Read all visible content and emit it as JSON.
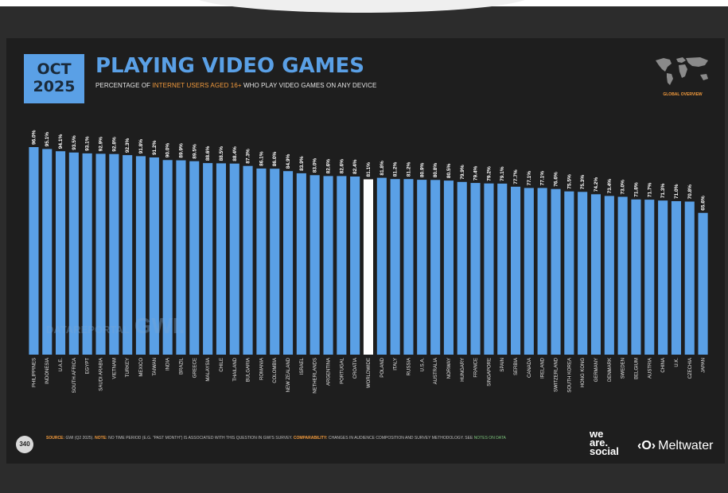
{
  "header": {
    "month": "OCT",
    "year": "2025",
    "title": "PLAYING VIDEO GAMES",
    "subtitle_pre": "PERCENTAGE OF ",
    "subtitle_highlight": "INTERNET USERS AGED 16+",
    "subtitle_post": " WHO PLAY VIDEO GAMES ON ANY DEVICE",
    "global_overview": "GLOBAL OVERVIEW"
  },
  "footer": {
    "page_number": "340",
    "source_label": "SOURCE:",
    "source_text": " GWI (Q2 2025). ",
    "note_label": "NOTE:",
    "note_text": " NO TIME PERIOD (E.G. \"PAST MONTH\") IS ASSOCIATED WITH THIS QUESTION IN GWI'S SURVEY. ",
    "comparability_label": "COMPARABILITY:",
    "comparability_text": " CHANGES IN AUDIENCE COMPOSITION AND SURVEY METHODOLOGY. SEE ",
    "notes_link": "NOTES ON DATA",
    "brand_line1": "we",
    "brand_line2": "are.",
    "brand_line3": "social",
    "partner_logo": "‹O›",
    "partner_name": "Meltwater"
  },
  "watermark": {
    "left": "DATAREPORTAL",
    "right": "GWI."
  },
  "colors": {
    "bar": "#5aa0e6",
    "highlight_bar": "#ffffff",
    "accent": "#f29a3c",
    "background": "#1e1e1e"
  },
  "chart_data": {
    "type": "bar",
    "title": "PLAYING VIDEO GAMES",
    "categories": [
      "PHILIPPINES",
      "INDONESIA",
      "U.A.E.",
      "SOUTH AFRICA",
      "EGYPT",
      "SAUDI ARABIA",
      "VIETNAM",
      "TURKEY",
      "MEXICO",
      "TAIWAN",
      "INDIA",
      "BRAZIL",
      "GREECE",
      "MALAYSIA",
      "CHILE",
      "THAILAND",
      "BULGARIA",
      "ROMANIA",
      "COLOMBIA",
      "NEW ZEALAND",
      "ISRAEL",
      "NETHERLANDS",
      "ARGENTINA",
      "PORTUGAL",
      "CROATIA",
      "WORLDWIDE",
      "POLAND",
      "ITALY",
      "RUSSIA",
      "U.S.A.",
      "AUSTRALIA",
      "NORWAY",
      "HUNGARY",
      "FRANCE",
      "SINGAPORE",
      "SPAIN",
      "SERBIA",
      "CANADA",
      "IRELAND",
      "SWITZERLAND",
      "SOUTH KOREA",
      "HONG KONG",
      "GERMANY",
      "DENMARK",
      "SWEDEN",
      "BELGIUM",
      "AUSTRIA",
      "CHINA",
      "U.K.",
      "CZECHIA",
      "JAPAN"
    ],
    "values": [
      96.0,
      95.1,
      94.1,
      93.5,
      93.1,
      92.9,
      92.8,
      92.3,
      91.8,
      91.2,
      90.0,
      89.9,
      89.5,
      88.6,
      88.5,
      88.4,
      87.3,
      86.1,
      86.0,
      84.9,
      83.9,
      83.0,
      82.6,
      82.6,
      82.4,
      81.1,
      81.8,
      81.2,
      81.2,
      80.9,
      80.8,
      80.5,
      79.9,
      79.4,
      79.2,
      79.1,
      77.7,
      77.1,
      77.1,
      76.6,
      75.5,
      75.3,
      74.2,
      73.4,
      73.0,
      71.8,
      71.7,
      71.3,
      71.0,
      70.8,
      65.6
    ],
    "labels": [
      "96.0%",
      "95.1%",
      "94.1%",
      "93.5%",
      "93.1%",
      "92.9%",
      "92.8%",
      "92.3%",
      "91.8%",
      "91.2%",
      "90.0%",
      "89.9%",
      "89.5%",
      "88.6%",
      "88.5%",
      "88.4%",
      "87.3%",
      "86.1%",
      "86.0%",
      "84.9%",
      "83.9%",
      "83.0%",
      "82.6%",
      "82.6%",
      "82.4%",
      "81.1%",
      "81.8%",
      "81.2%",
      "81.2%",
      "80.9%",
      "80.8%",
      "80.5%",
      "79.9%",
      "79.4%",
      "79.2%",
      "79.1%",
      "77.7%",
      "77.1%",
      "77.1%",
      "76.6%",
      "75.5%",
      "75.3%",
      "74.2%",
      "73.4%",
      "73.0%",
      "71.8%",
      "71.7%",
      "71.3%",
      "71.0%",
      "70.8%",
      "65.6%"
    ],
    "highlight_category": "WORLDWIDE",
    "ylim": [
      0,
      96
    ],
    "grid": false,
    "legend": "none"
  }
}
